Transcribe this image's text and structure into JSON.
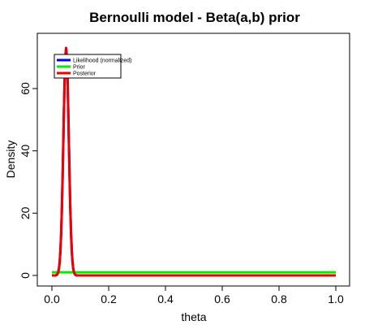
{
  "chart_data": {
    "type": "line",
    "title": "Bernoulli model - Beta(a,b) prior",
    "xlabel": "theta",
    "ylabel": "Density",
    "xlim": [
      0,
      1
    ],
    "ylim": [
      0,
      74
    ],
    "x_ticks": [
      0.0,
      0.2,
      0.4,
      0.6,
      0.8,
      1.0
    ],
    "x_tick_labels": [
      "0.0",
      "0.2",
      "0.4",
      "0.6",
      "0.8",
      "1.0"
    ],
    "y_ticks": [
      0,
      20,
      40,
      60
    ],
    "y_tick_labels": [
      "0",
      "20",
      "40",
      "60"
    ],
    "grid": false,
    "legend_position": "top-left",
    "series": [
      {
        "name": "Likelihood (normalized)",
        "color": "#0000ee",
        "shape": "peak",
        "peak_x": 0.05,
        "peak_y": 73,
        "spread": 0.0095,
        "baseline": 0
      },
      {
        "name": "Prior",
        "color": "#00ee00",
        "shape": "constant",
        "value": 1
      },
      {
        "name": "Posterior",
        "color": "#ee0000",
        "shape": "peak",
        "peak_x": 0.05,
        "peak_y": 73,
        "spread": 0.0095,
        "baseline": 0
      }
    ]
  }
}
